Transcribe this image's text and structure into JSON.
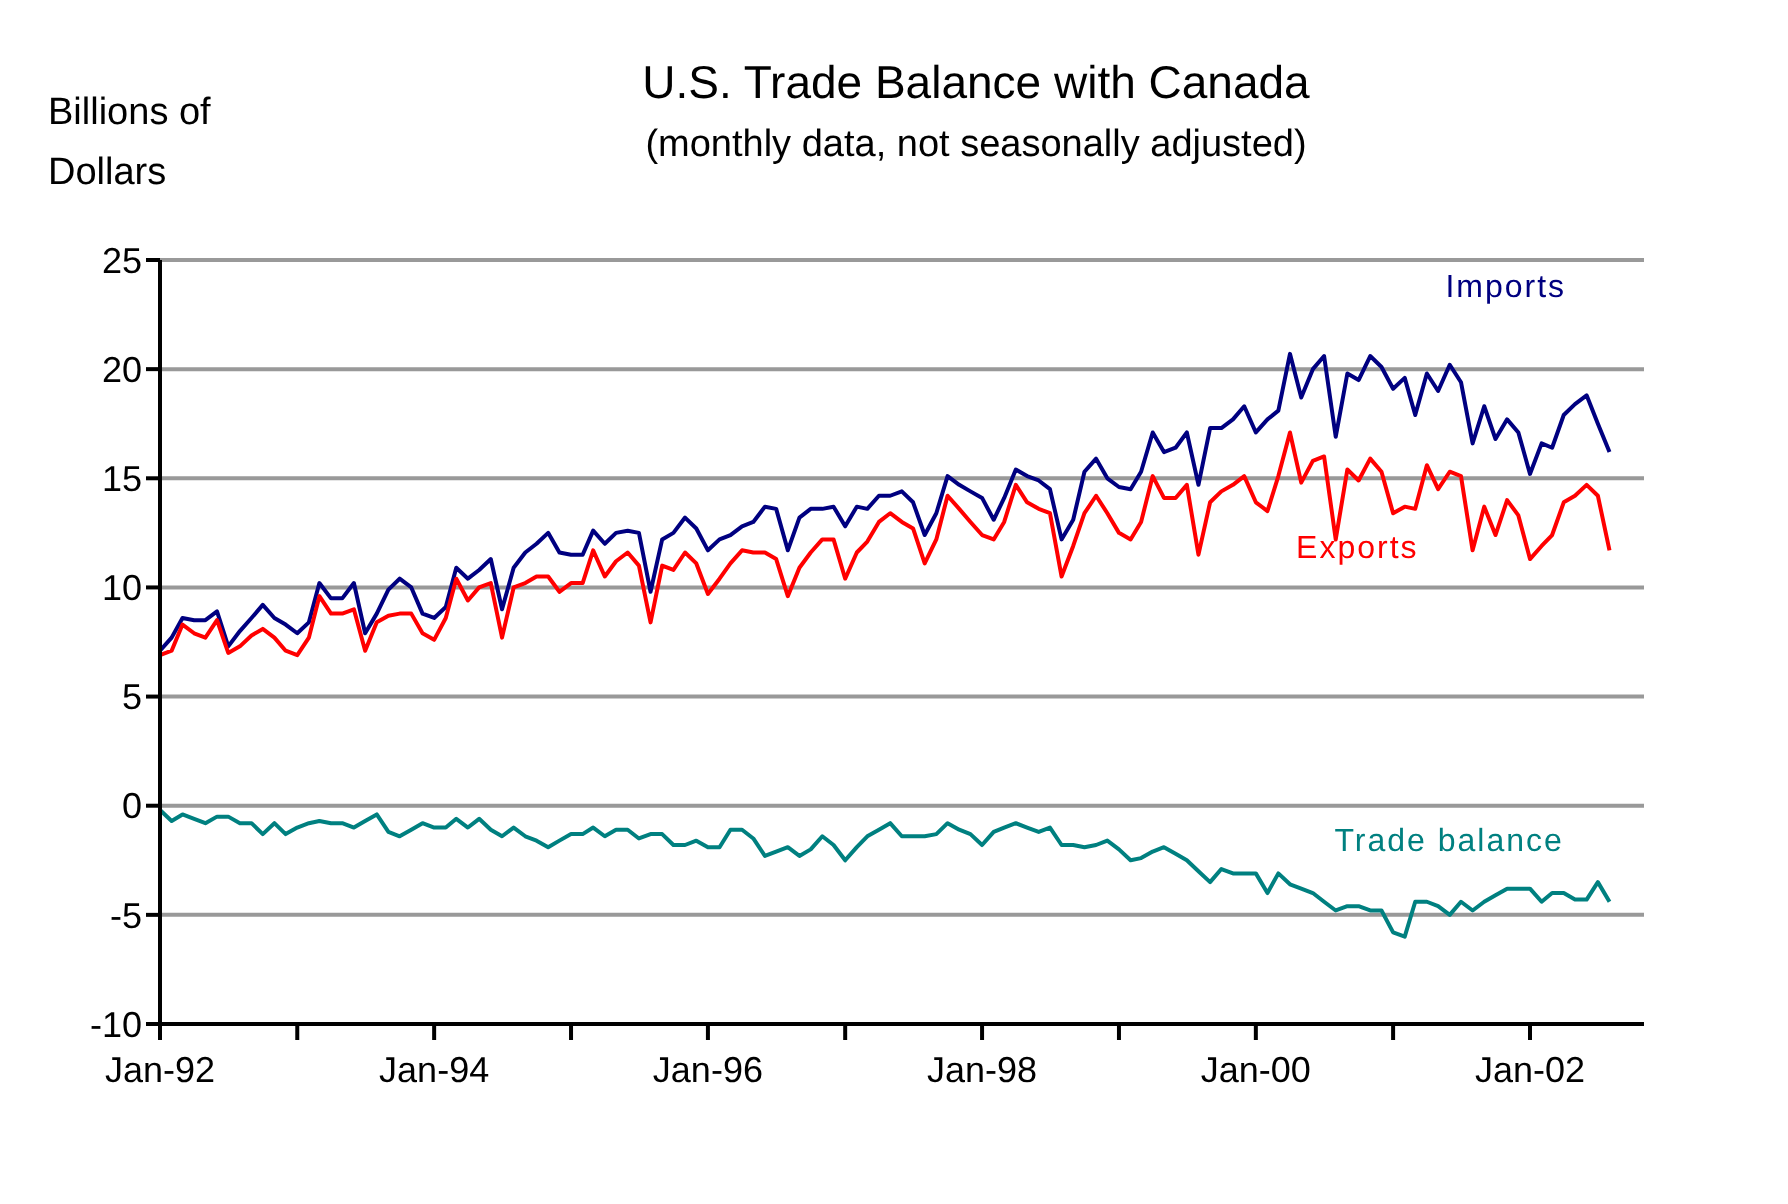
{
  "chart_data": {
    "type": "line",
    "title": "U.S. Trade Balance with Canada",
    "subtitle": "(monthly data, not seasonally adjusted)",
    "ylabel": "Billions of Dollars",
    "x": [
      "1992-01",
      "1992-02",
      "1992-03",
      "1992-04",
      "1992-05",
      "1992-06",
      "1992-07",
      "1992-08",
      "1992-09",
      "1992-10",
      "1992-11",
      "1992-12",
      "1993-01",
      "1993-02",
      "1993-03",
      "1993-04",
      "1993-05",
      "1993-06",
      "1993-07",
      "1993-08",
      "1993-09",
      "1993-10",
      "1993-11",
      "1993-12",
      "1994-01",
      "1994-02",
      "1994-03",
      "1994-04",
      "1994-05",
      "1994-06",
      "1994-07",
      "1994-08",
      "1994-09",
      "1994-10",
      "1994-11",
      "1994-12",
      "1995-01",
      "1995-02",
      "1995-03",
      "1995-04",
      "1995-05",
      "1995-06",
      "1995-07",
      "1995-08",
      "1995-09",
      "1995-10",
      "1995-11",
      "1995-12",
      "1996-01",
      "1996-02",
      "1996-03",
      "1996-04",
      "1996-05",
      "1996-06",
      "1996-07",
      "1996-08",
      "1996-09",
      "1996-10",
      "1996-11",
      "1996-12",
      "1997-01",
      "1997-02",
      "1997-03",
      "1997-04",
      "1997-05",
      "1997-06",
      "1997-07",
      "1997-08",
      "1997-09",
      "1997-10",
      "1997-11",
      "1997-12",
      "1998-01",
      "1998-02",
      "1998-03",
      "1998-04",
      "1998-05",
      "1998-06",
      "1998-07",
      "1998-08",
      "1998-09",
      "1998-10",
      "1998-11",
      "1998-12",
      "1999-01",
      "1999-02",
      "1999-03",
      "1999-04",
      "1999-05",
      "1999-06",
      "1999-07",
      "1999-08",
      "1999-09",
      "1999-10",
      "1999-11",
      "1999-12",
      "2000-01",
      "2000-02",
      "2000-03",
      "2000-04",
      "2000-05",
      "2000-06",
      "2000-07",
      "2000-08",
      "2000-09",
      "2000-10",
      "2000-11",
      "2000-12",
      "2001-01",
      "2001-02",
      "2001-03",
      "2001-04",
      "2001-05",
      "2001-06",
      "2001-07",
      "2001-08",
      "2001-09",
      "2001-10",
      "2001-11",
      "2001-12",
      "2002-01",
      "2002-02",
      "2002-03",
      "2002-04",
      "2002-05",
      "2002-06",
      "2002-07",
      "2002-08"
    ],
    "series": [
      {
        "name": "Imports",
        "color": "#000080",
        "values": [
          7.1,
          7.7,
          8.6,
          8.5,
          8.5,
          8.9,
          7.3,
          8.0,
          8.6,
          9.2,
          8.6,
          8.3,
          7.9,
          8.4,
          10.2,
          9.5,
          9.5,
          10.2,
          7.9,
          8.8,
          9.9,
          10.4,
          10.0,
          8.8,
          8.6,
          9.1,
          10.9,
          10.4,
          10.8,
          11.3,
          9.0,
          10.9,
          11.6,
          12.0,
          12.5,
          11.6,
          11.5,
          11.5,
          12.6,
          12.0,
          12.5,
          12.6,
          12.5,
          9.8,
          12.2,
          12.5,
          13.2,
          12.7,
          11.7,
          12.2,
          12.4,
          12.8,
          13.0,
          13.7,
          13.6,
          11.7,
          13.2,
          13.6,
          13.6,
          13.7,
          12.8,
          13.7,
          13.6,
          14.2,
          14.2,
          14.4,
          13.9,
          12.4,
          13.4,
          15.1,
          14.7,
          14.4,
          14.1,
          13.1,
          14.1,
          15.4,
          15.1,
          14.9,
          14.5,
          12.2,
          13.1,
          15.3,
          15.9,
          15.0,
          14.6,
          14.5,
          15.3,
          17.1,
          16.2,
          16.4,
          17.1,
          14.7,
          17.3,
          17.3,
          17.7,
          18.3,
          17.1,
          17.7,
          18.1,
          20.7,
          18.7,
          20.0,
          20.6,
          16.9,
          19.8,
          19.5,
          20.6,
          20.1,
          19.1,
          19.6,
          17.9,
          19.8,
          19.0,
          20.2,
          19.4,
          16.6,
          18.3,
          16.8,
          17.7,
          17.1,
          15.2,
          16.6,
          16.4,
          17.9,
          18.4,
          18.8,
          17.5,
          16.2
        ]
      },
      {
        "name": "Exports",
        "color": "#ff0000",
        "values": [
          6.9,
          7.1,
          8.3,
          7.9,
          7.7,
          8.5,
          7.0,
          7.3,
          7.8,
          8.1,
          7.7,
          7.1,
          6.9,
          7.7,
          9.6,
          8.8,
          8.8,
          9.0,
          7.1,
          8.4,
          8.7,
          8.8,
          8.8,
          7.9,
          7.6,
          8.6,
          10.4,
          9.4,
          10.0,
          10.2,
          7.7,
          10.0,
          10.2,
          10.5,
          10.5,
          9.8,
          10.2,
          10.2,
          11.7,
          10.5,
          11.2,
          11.6,
          11.0,
          8.4,
          11.0,
          10.8,
          11.6,
          11.1,
          9.7,
          10.4,
          11.1,
          11.7,
          11.6,
          11.6,
          11.3,
          9.6,
          10.9,
          11.6,
          12.2,
          12.2,
          10.4,
          11.6,
          12.1,
          13.0,
          13.4,
          13.0,
          12.7,
          11.1,
          12.2,
          14.2,
          13.6,
          13.0,
          12.4,
          12.2,
          13.0,
          14.7,
          13.9,
          13.6,
          13.4,
          10.5,
          11.9,
          13.4,
          14.2,
          13.4,
          12.5,
          12.2,
          13.0,
          15.1,
          14.1,
          14.1,
          14.7,
          11.5,
          13.9,
          14.4,
          14.7,
          15.1,
          13.9,
          13.5,
          15.1,
          17.1,
          14.8,
          15.8,
          16.0,
          12.2,
          15.4,
          14.9,
          15.9,
          15.3,
          13.4,
          13.7,
          13.6,
          15.6,
          14.5,
          15.3,
          15.1,
          11.7,
          13.7,
          12.4,
          14.0,
          13.3,
          11.3,
          11.9,
          12.4,
          13.9,
          14.2,
          14.7,
          14.2,
          11.7
        ]
      },
      {
        "name": "Trade balance",
        "color": "#008080",
        "values": [
          -0.2,
          -0.7,
          -0.4,
          -0.6,
          -0.8,
          -0.5,
          -0.5,
          -0.8,
          -0.8,
          -1.3,
          -0.8,
          -1.3,
          -1.0,
          -0.8,
          -0.7,
          -0.8,
          -0.8,
          -1.0,
          -0.7,
          -0.4,
          -1.2,
          -1.4,
          -1.1,
          -0.8,
          -1.0,
          -1.0,
          -0.6,
          -1.0,
          -0.6,
          -1.1,
          -1.4,
          -1.0,
          -1.4,
          -1.6,
          -1.9,
          -1.6,
          -1.3,
          -1.3,
          -1.0,
          -1.4,
          -1.1,
          -1.1,
          -1.5,
          -1.3,
          -1.3,
          -1.8,
          -1.8,
          -1.6,
          -1.9,
          -1.9,
          -1.1,
          -1.1,
          -1.5,
          -2.3,
          -2.1,
          -1.9,
          -2.3,
          -2.0,
          -1.4,
          -1.8,
          -2.5,
          -1.9,
          -1.4,
          -1.1,
          -0.8,
          -1.4,
          -1.4,
          -1.4,
          -1.3,
          -0.8,
          -1.1,
          -1.3,
          -1.8,
          -1.2,
          -1.0,
          -0.8,
          -1.0,
          -1.2,
          -1.0,
          -1.8,
          -1.8,
          -1.9,
          -1.8,
          -1.6,
          -2.0,
          -2.5,
          -2.4,
          -2.1,
          -1.9,
          -2.2,
          -2.5,
          -3.0,
          -3.5,
          -2.9,
          -3.1,
          -3.1,
          -3.1,
          -4.0,
          -3.1,
          -3.6,
          -3.8,
          -4.0,
          -4.4,
          -4.8,
          -4.6,
          -4.6,
          -4.8,
          -4.8,
          -5.8,
          -6.0,
          -4.4,
          -4.4,
          -4.6,
          -5.0,
          -4.4,
          -4.8,
          -4.4,
          -4.1,
          -3.8,
          -3.8,
          -3.8,
          -4.4,
          -4.0,
          -4.0,
          -4.3,
          -4.3,
          -3.5,
          -4.4
        ]
      }
    ],
    "xlim": [
      "1992-01",
      "2002-11"
    ],
    "xticks": [
      {
        "value": "1992-01",
        "label": "Jan-92"
      },
      {
        "value": "1993-01",
        "label": null
      },
      {
        "value": "1994-01",
        "label": "Jan-94"
      },
      {
        "value": "1995-01",
        "label": null
      },
      {
        "value": "1996-01",
        "label": "Jan-96"
      },
      {
        "value": "1997-01",
        "label": null
      },
      {
        "value": "1998-01",
        "label": "Jan-98"
      },
      {
        "value": "1999-01",
        "label": null
      },
      {
        "value": "2000-01",
        "label": "Jan-00"
      },
      {
        "value": "2001-01",
        "label": null
      },
      {
        "value": "2002-01",
        "label": "Jan-02"
      }
    ],
    "ylim": [
      -10,
      25
    ],
    "yticks": [
      -10,
      -5,
      0,
      5,
      10,
      15,
      20,
      25
    ],
    "grid": "y",
    "legend": false,
    "marker": "none",
    "line_style": "solid"
  }
}
